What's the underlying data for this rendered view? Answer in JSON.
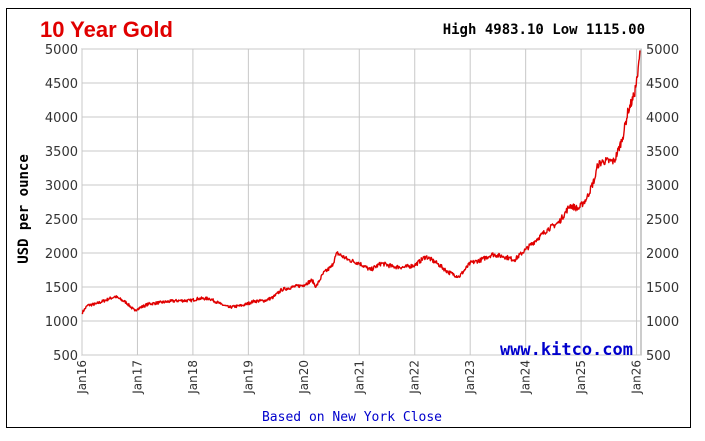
{
  "chart_data": {
    "type": "line",
    "title": "10 Year Gold",
    "high_low": "High 4983.10 Low 1115.00",
    "ylabel": "USD per ounce",
    "watermark": "www.kitco.com",
    "footer": "Based on New York Close",
    "ylim": [
      500,
      5000
    ],
    "yticks": [
      "5000",
      "4500",
      "4000",
      "3500",
      "3000",
      "2500",
      "2000",
      "1500",
      "1000",
      "500"
    ],
    "xlim": [
      2016.0,
      2026.08
    ],
    "xticks": [
      "Jan16",
      "Jan17",
      "Jan18",
      "Jan19",
      "Jan20",
      "Jan21",
      "Jan22",
      "Jan23",
      "Jan24",
      "Jan25",
      "Jan26"
    ],
    "grid": true,
    "line_color": "#e00000",
    "series": [
      {
        "x": [
          2016.0,
          2016.1,
          2016.25,
          2016.5,
          2016.6,
          2016.8,
          2016.95,
          2017.0,
          2017.2,
          2017.4,
          2017.6,
          2017.75,
          2017.95,
          2018.1,
          2018.3,
          2018.5,
          2018.65,
          2018.9,
          2019.1,
          2019.3,
          2019.45,
          2019.6,
          2019.8,
          2020.0,
          2020.15,
          2020.22,
          2020.35,
          2020.5,
          2020.6,
          2020.8,
          2021.0,
          2021.2,
          2021.4,
          2021.6,
          2021.8,
          2022.0,
          2022.2,
          2022.4,
          2022.6,
          2022.8,
          2023.0,
          2023.2,
          2023.4,
          2023.6,
          2023.8,
          2024.0,
          2024.2,
          2024.4,
          2024.6,
          2024.8,
          2024.95,
          2025.1,
          2025.25,
          2025.3,
          2025.4,
          2025.6,
          2025.75,
          2025.85,
          2025.95,
          2026.02,
          2026.06
        ],
        "y": [
          1120,
          1230,
          1250,
          1330,
          1360,
          1270,
          1150,
          1180,
          1250,
          1270,
          1290,
          1300,
          1300,
          1330,
          1330,
          1250,
          1200,
          1230,
          1290,
          1300,
          1350,
          1460,
          1500,
          1530,
          1600,
          1500,
          1700,
          1800,
          2000,
          1900,
          1850,
          1750,
          1850,
          1800,
          1790,
          1820,
          1950,
          1850,
          1720,
          1650,
          1850,
          1900,
          1980,
          1950,
          1900,
          2050,
          2200,
          2350,
          2450,
          2700,
          2650,
          2800,
          3100,
          3300,
          3350,
          3350,
          3700,
          4100,
          4300,
          4600,
          4980
        ]
      }
    ]
  }
}
